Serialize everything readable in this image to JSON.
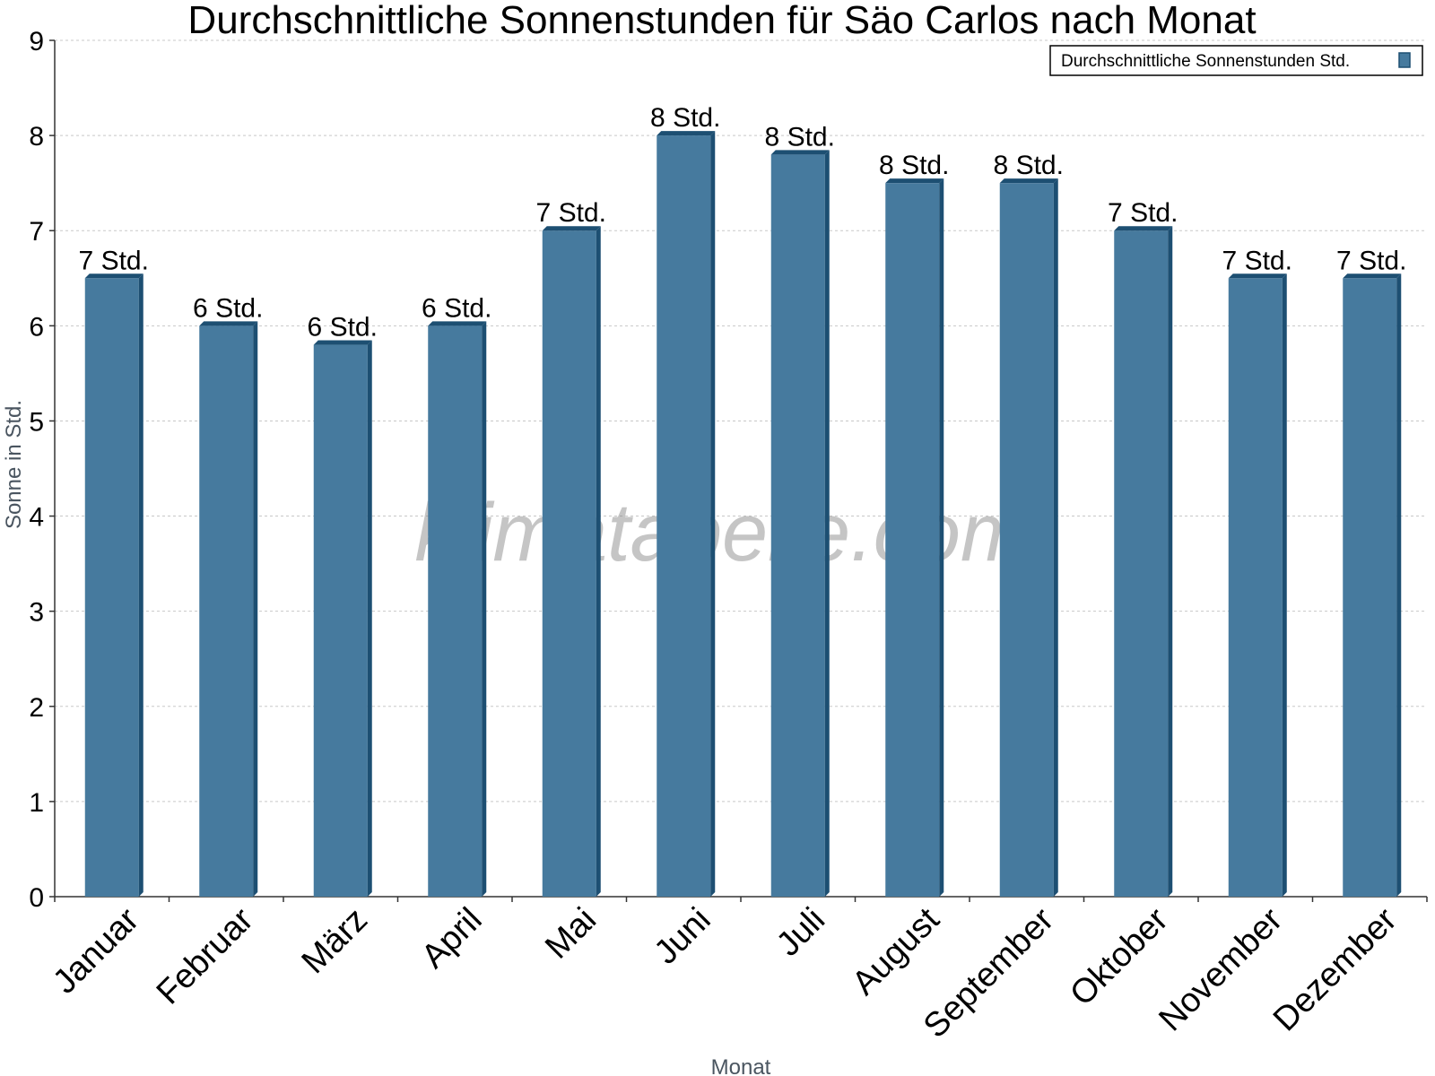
{
  "chart_data": {
    "type": "bar",
    "title": "Durchschnittliche Sonnenstunden für Säo Carlos nach Monat",
    "xlabel": "Monat",
    "ylabel": "Sonne in Std.",
    "ylim": [
      0,
      9
    ],
    "yticks": [
      0,
      1,
      2,
      3,
      4,
      5,
      6,
      7,
      8,
      9
    ],
    "grid": true,
    "legend_position": "top-right",
    "categories": [
      "Januar",
      "Februar",
      "März",
      "April",
      "Mai",
      "Juni",
      "Juli",
      "August",
      "September",
      "Oktober",
      "November",
      "Dezember"
    ],
    "series": [
      {
        "name": "Durchschnittliche Sonnenstunden Std.",
        "values": [
          6.5,
          6.0,
          5.8,
          6.0,
          7.0,
          8.0,
          7.8,
          7.5,
          7.5,
          7.0,
          6.5,
          6.5
        ],
        "data_labels": [
          "7 Std.",
          "6 Std.",
          "6 Std.",
          "6 Std.",
          "7 Std.",
          "8 Std.",
          "8 Std.",
          "8 Std.",
          "8 Std.",
          "7 Std.",
          "7 Std.",
          "7 Std."
        ],
        "color": "#467a9e",
        "side_color": "#1d4f72"
      }
    ],
    "watermark": "klimatabelle.com"
  }
}
